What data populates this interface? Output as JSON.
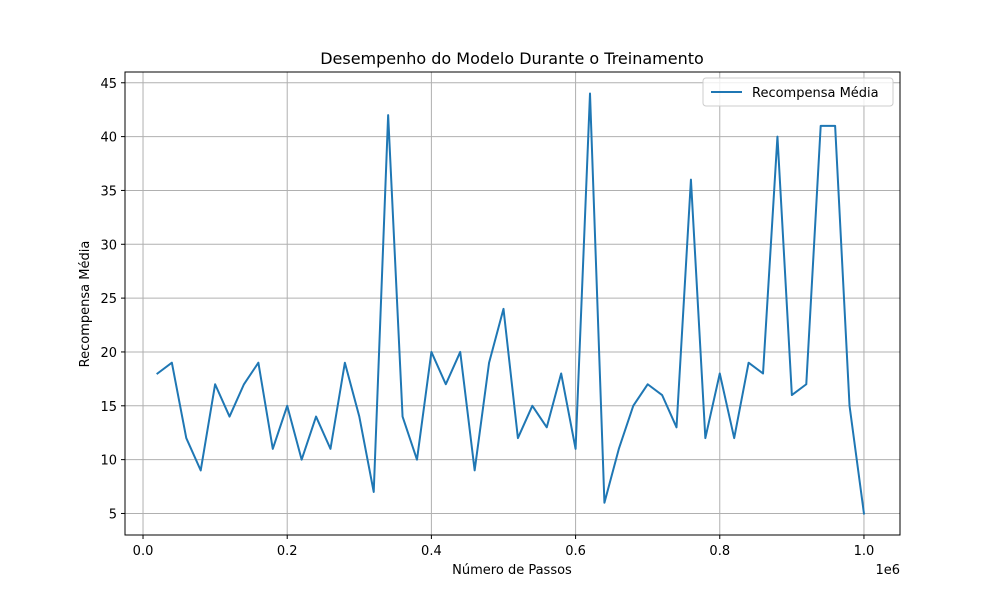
{
  "chart_data": {
    "type": "line",
    "title": "Desempenho do Modelo Durante o Treinamento",
    "xlabel": "Número de Passos",
    "ylabel": "Recompensa Média",
    "x_offset_label": "1e6",
    "x_scale": 1000000,
    "xlim": [
      -25000,
      1050000
    ],
    "ylim": [
      3,
      46
    ],
    "x_ticks": [
      0,
      200000,
      400000,
      600000,
      800000,
      1000000
    ],
    "x_tick_labels": [
      "0.0",
      "0.2",
      "0.4",
      "0.6",
      "0.8",
      "1.0"
    ],
    "y_ticks": [
      5,
      10,
      15,
      20,
      25,
      30,
      35,
      40,
      45
    ],
    "y_tick_labels": [
      "5",
      "10",
      "15",
      "20",
      "25",
      "30",
      "35",
      "40",
      "45"
    ],
    "grid": true,
    "legend_position": "top-right",
    "series": [
      {
        "name": "Recompensa Média",
        "color": "#1f77b4",
        "x": [
          20000,
          40000,
          60000,
          80000,
          100000,
          120000,
          140000,
          160000,
          180000,
          200000,
          220000,
          240000,
          260000,
          280000,
          300000,
          320000,
          340000,
          360000,
          380000,
          400000,
          420000,
          440000,
          460000,
          480000,
          500000,
          520000,
          540000,
          560000,
          580000,
          600000,
          620000,
          640000,
          660000,
          680000,
          700000,
          720000,
          740000,
          760000,
          780000,
          800000,
          820000,
          840000,
          860000,
          880000,
          900000,
          920000,
          940000,
          960000,
          980000,
          1000000
        ],
        "values": [
          18,
          19,
          12,
          9,
          17,
          14,
          17,
          19,
          11,
          15,
          10,
          14,
          11,
          19,
          14,
          7,
          42,
          14,
          10,
          20,
          17,
          20,
          9,
          19,
          24,
          12,
          15,
          13,
          18,
          11,
          44,
          6,
          11,
          15,
          17,
          16,
          13,
          36,
          12,
          18,
          12,
          19,
          18,
          40,
          16,
          17,
          41,
          41,
          15,
          5
        ]
      }
    ]
  }
}
